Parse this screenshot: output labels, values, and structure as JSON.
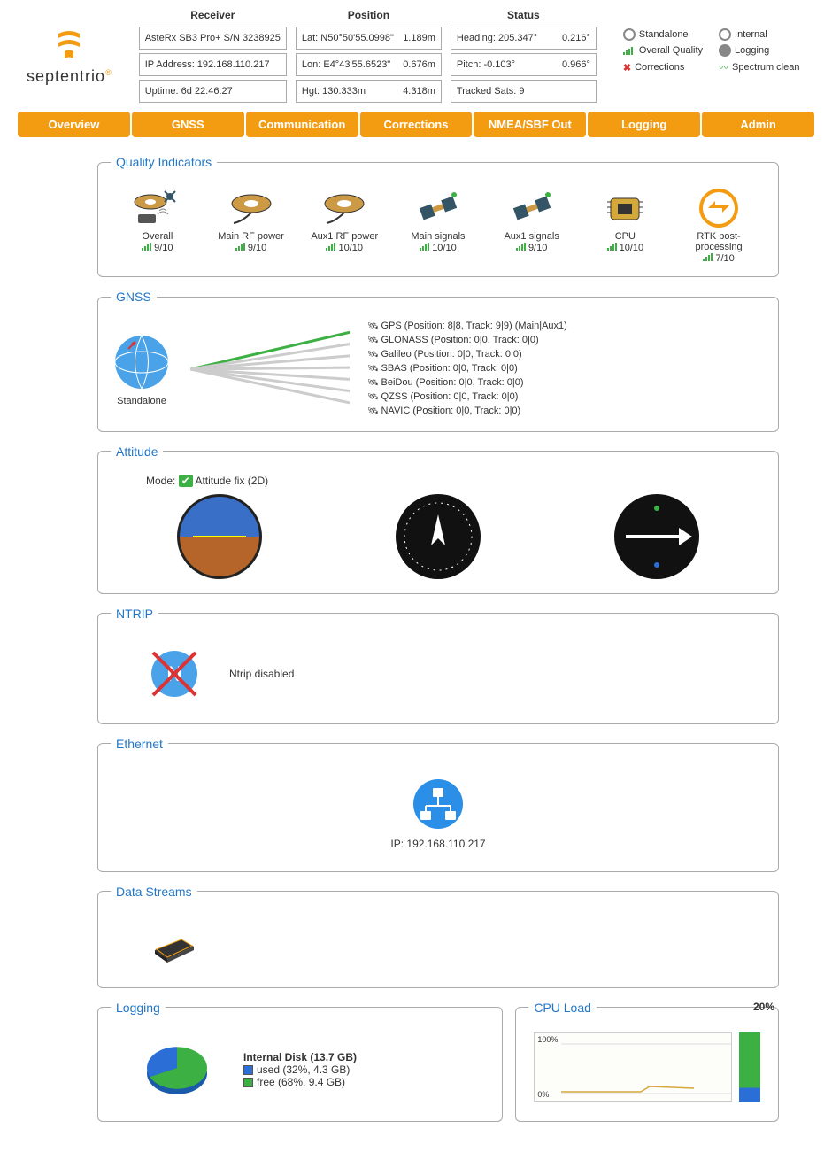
{
  "brand": "septentrio",
  "colors": {
    "accent": "#f39c12",
    "link": "#2176c7",
    "green": "#3cb043",
    "blue": "#2b6fd6"
  },
  "header": {
    "receiver": {
      "title": "Receiver",
      "model": "AsteRx SB3 Pro+ S/N 3238925",
      "ip": "IP Address: 192.168.110.217",
      "uptime": "Uptime: 6d 22:46:27"
    },
    "position": {
      "title": "Position",
      "lat_l": "Lat:  N50°50'55.0998\"",
      "lat_r": "1.189m",
      "lon_l": "Lon: E4°43'55.6523\"",
      "lon_r": "0.676m",
      "hgt_l": "Hgt: 130.333m",
      "hgt_r": "4.318m"
    },
    "status": {
      "title": "Status",
      "head_l": "Heading: 205.347°",
      "head_r": "0.216°",
      "pitch_l": "Pitch:      -0.103°",
      "pitch_r": "0.966°",
      "sats": "Tracked Sats: 9"
    },
    "badges": {
      "standalone": "Standalone",
      "internal": "Internal",
      "quality": "Overall Quality",
      "logging": "Logging",
      "corrections": "Corrections",
      "spectrum": "Spectrum clean"
    }
  },
  "nav": {
    "overview": "Overview",
    "gnss": "GNSS",
    "comm": "Communication",
    "corr": "Corrections",
    "nmea": "NMEA/SBF Out",
    "logging": "Logging",
    "admin": "Admin"
  },
  "qi": {
    "legend": "Quality Indicators",
    "items": [
      {
        "label": "Overall",
        "score": "9/10"
      },
      {
        "label": "Main RF power",
        "score": "9/10"
      },
      {
        "label": "Aux1 RF power",
        "score": "10/10"
      },
      {
        "label": "Main signals",
        "score": "10/10"
      },
      {
        "label": "Aux1 signals",
        "score": "9/10"
      },
      {
        "label": "CPU",
        "score": "10/10"
      },
      {
        "label": "RTK post-processing",
        "score": "7/10"
      }
    ]
  },
  "gnss": {
    "legend": "GNSS",
    "mode": "Standalone",
    "sats": [
      "GPS (Position: 8|8, Track: 9|9) (Main|Aux1)",
      "GLONASS (Position: 0|0, Track: 0|0)",
      "Galileo (Position: 0|0, Track: 0|0)",
      "SBAS (Position: 0|0, Track: 0|0)",
      "BeiDou (Position: 0|0, Track: 0|0)",
      "QZSS (Position: 0|0, Track: 0|0)",
      "NAVIC (Position: 0|0, Track: 0|0)"
    ]
  },
  "attitude": {
    "legend": "Attitude",
    "mode_label": "Mode:",
    "mode_value": "Attitude fix (2D)"
  },
  "ntrip": {
    "legend": "NTRIP",
    "status": "Ntrip disabled"
  },
  "ethernet": {
    "legend": "Ethernet",
    "ip": "IP: 192.168.110.217"
  },
  "datastreams": {
    "legend": "Data Streams"
  },
  "logging": {
    "legend": "Logging",
    "disk_title": "Internal Disk (13.7 GB)",
    "used_pct": 32,
    "used_label": "used (32%, 4.3 GB)",
    "free_pct": 68,
    "free_label": "free (68%, 9.4 GB)",
    "used_color": "#2b6fd6",
    "free_color": "#3cb043"
  },
  "cpu": {
    "legend": "CPU Load",
    "pct": "20%",
    "y_top": "100%",
    "y_bot": "0%"
  }
}
